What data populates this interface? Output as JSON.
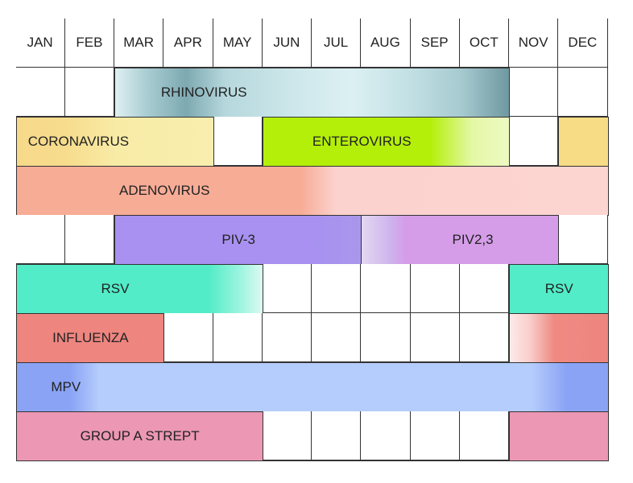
{
  "months": [
    "JAN",
    "FEB",
    "MAR",
    "APR",
    "MAY",
    "JUN",
    "JUL",
    "AUG",
    "SEP",
    "OCT",
    "NOV",
    "DEC"
  ],
  "rows": [
    {
      "bars": [
        {
          "label": "RHINOVIRUS",
          "start": 2,
          "end": 10,
          "bg": "linear-gradient(90deg,#dff0f1 0%,#a9cdd3 8%,#7ea9b1 18%,#b6d8dd 28%,#cde7ea 45%,#dcf0f2 60%,#c2e0e4 75%,#a6cad0 88%,#6f98a0 100%)",
          "labelPos": 3.8
        }
      ]
    },
    {
      "bars": [
        {
          "label": "CORONAVIRUS",
          "start": 0,
          "end": 4,
          "bg": "linear-gradient(90deg,#f7d98a 0%,#f7dc8d 25%,#f8eba6 50%,#f9eeae 100%)",
          "labelPos": 0.2,
          "align": "left"
        },
        {
          "label": "ENTEROVIRUS",
          "start": 5,
          "end": 10,
          "bg": "linear-gradient(90deg,#b4ef0a 0%,#b4ef0a 68%,#e4f8a6 85%,#edfac2 100%)",
          "labelPos": 7
        },
        {
          "label": "",
          "start": 11,
          "end": 12,
          "bg": "#f8dc85"
        }
      ]
    },
    {
      "bars": [
        {
          "label": "ADENOVIRUS",
          "start": 0,
          "end": 12,
          "bg": "linear-gradient(90deg,#f7ac96 0%,#f7ac96 48%,#fcd2ce 54%,#fcd4d0 100%)",
          "labelPos": 3
        }
      ]
    },
    {
      "bars": [
        {
          "label": "PIV-3",
          "start": 2,
          "end": 7,
          "bg": "linear-gradient(90deg,#a891f0 0%,#a891f0 80%,#a997ec 100%)",
          "labelPos": 4.5
        },
        {
          "label": "PIV2,3",
          "start": 7,
          "end": 11,
          "bg": "linear-gradient(90deg,#e4d7f2 0%,#cdb3ec 15%,#d59de8 22%,#d59de8 100%)",
          "labelPos": 9.25
        }
      ]
    },
    {
      "bars": [
        {
          "label": "RSV",
          "start": 0,
          "end": 5,
          "bg": "linear-gradient(90deg,#52ecc8 0%,#52ecc8 78%,#a4f5e1 92%,#def9f1 100%)",
          "labelPos": 2
        },
        {
          "label": "RSV",
          "start": 10,
          "end": 12,
          "bg": "#52ecc8",
          "labelPos": 11
        }
      ]
    },
    {
      "bars": [
        {
          "label": "INFLUENZA",
          "start": 0,
          "end": 3,
          "bg": "#ee857f",
          "labelPos": 1.5
        },
        {
          "label": "",
          "start": 10,
          "end": 12,
          "bg": "linear-gradient(90deg,#fdeaea 0%,#f9cfcc 20%,#ef8a83 45%,#ee857f 100%)"
        }
      ]
    },
    {
      "bars": [
        {
          "label": "MPV",
          "start": 0,
          "end": 12,
          "bg": "linear-gradient(90deg,#8aa3f5 0%,#8aa3f5 9%,#b5cdfc 14%,#b5cdfc 87%,#8aa3f5 93%,#8aa3f5 100%)",
          "labelPos": 1
        }
      ]
    },
    {
      "bars": [
        {
          "label": "GROUP A STREPT",
          "start": 0,
          "end": 5,
          "bg": "#ec97b4",
          "labelPos": 2.5
        },
        {
          "label": "",
          "start": 10,
          "end": 12,
          "bg": "#ec97b4"
        }
      ]
    }
  ]
}
